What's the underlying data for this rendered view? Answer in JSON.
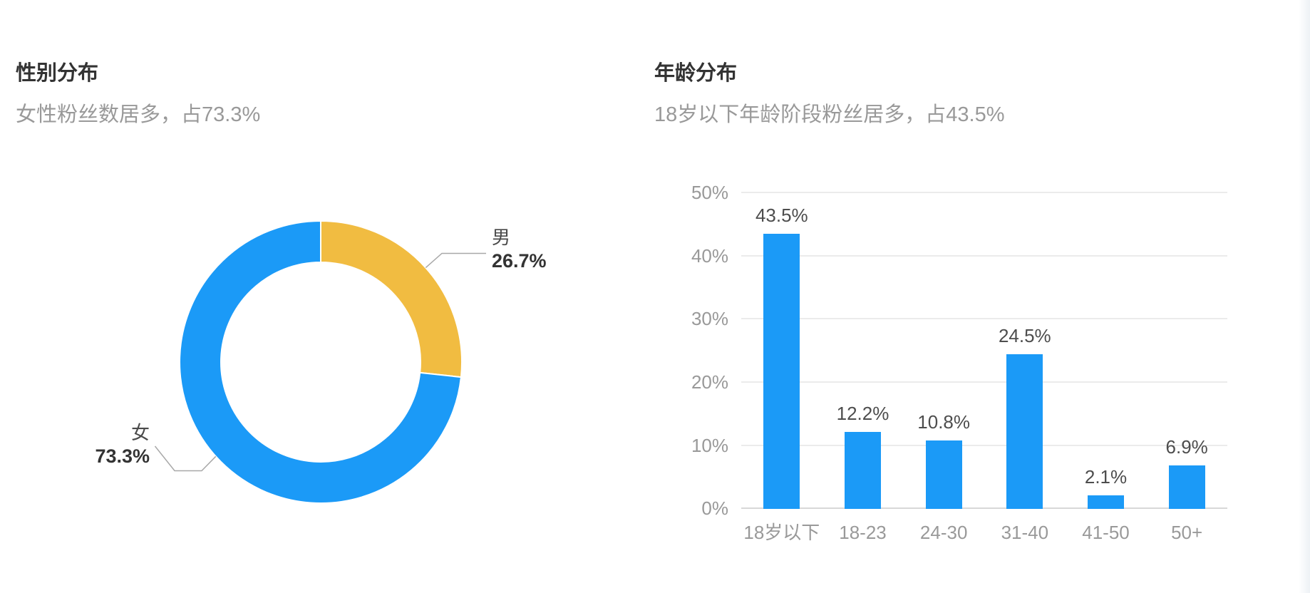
{
  "chart_data": [
    {
      "type": "pie",
      "shape": "donut",
      "title": "性别分布",
      "subtitle": "女性粉丝数居多，占73.3%",
      "data": [
        {
          "name": "男",
          "value": 26.7,
          "percent_label": "26.7%",
          "color": "#F1BC41"
        },
        {
          "name": "女",
          "value": 73.3,
          "percent_label": "73.3%",
          "color": "#1B9AF7"
        }
      ],
      "start_angle": "top",
      "direction": "clockwise",
      "label_line_color": "#A8A8A8",
      "label_name_color": "#4a4a4a",
      "label_percent_color": "#333333",
      "slice_border_color": "#ffffff"
    },
    {
      "type": "bar",
      "title": "年龄分布",
      "subtitle": "18岁以下年龄阶段粉丝居多，占43.5%",
      "categories": [
        "18岁以下",
        "18-23",
        "24-30",
        "31-40",
        "41-50",
        "50+"
      ],
      "values": [
        43.5,
        12.2,
        10.8,
        24.5,
        2.1,
        6.9
      ],
      "value_labels": [
        "43.5%",
        "12.2%",
        "10.8%",
        "24.5%",
        "2.1%",
        "6.9%"
      ],
      "y_ticks": [
        "50%",
        "40%",
        "30%",
        "20%",
        "10%",
        "0%"
      ],
      "ylim": [
        0,
        50
      ],
      "grid": true,
      "bar_color": "#1B9AF7",
      "axis_text_color": "#999999",
      "value_text_color": "#4d4d4d",
      "grid_color": "#ebebeb",
      "axis_line_color": "#d8d8d8"
    }
  ]
}
